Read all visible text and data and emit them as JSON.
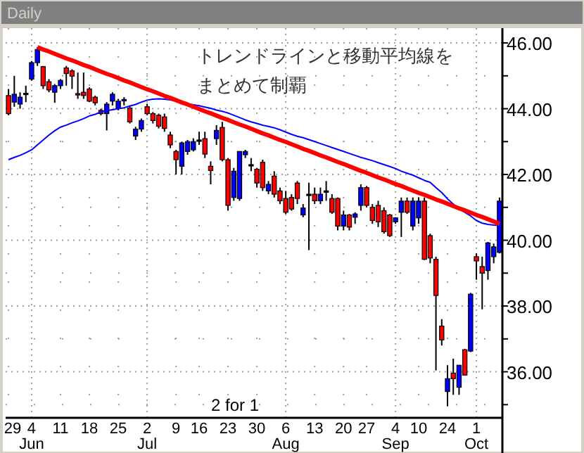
{
  "chart_data": {
    "type": "candlestick",
    "title": "Daily",
    "categories": [
      "29",
      null,
      null,
      null,
      "4\nJun",
      null,
      null,
      null,
      null,
      "11",
      null,
      null,
      null,
      null,
      "18",
      null,
      null,
      null,
      null,
      "25",
      null,
      null,
      null,
      null,
      "2\nJul",
      null,
      null,
      null,
      null,
      "9",
      null,
      null,
      null,
      "16",
      null,
      null,
      null,
      null,
      "23",
      null,
      null,
      null,
      null,
      "30",
      null,
      null,
      null,
      null,
      "6\nAug",
      null,
      null,
      null,
      null,
      "13",
      null,
      null,
      null,
      null,
      "20",
      null,
      null,
      null,
      "27",
      null,
      null,
      null,
      null,
      "4\nSep",
      null,
      null,
      null,
      "10",
      null,
      null,
      null,
      null,
      "24",
      null,
      null,
      null,
      null,
      "1\nOct",
      null,
      null,
      null,
      null
    ],
    "ohlc": [
      [
        44.4,
        44.6,
        43.8,
        43.85
      ],
      [
        44.2,
        45.0,
        44.06,
        44.44
      ],
      [
        44.14,
        44.5,
        44.0,
        44.35
      ],
      [
        44.47,
        44.7,
        44.2,
        44.47
      ],
      [
        44.9,
        45.45,
        44.85,
        45.4
      ],
      [
        45.4,
        45.87,
        45.3,
        45.8
      ],
      [
        45.28,
        45.3,
        44.6,
        44.7
      ],
      [
        44.82,
        44.9,
        44.5,
        44.57
      ],
      [
        44.5,
        44.75,
        44.18,
        44.7
      ],
      [
        44.7,
        44.9,
        44.6,
        44.86
      ],
      [
        45.24,
        45.3,
        44.7,
        45.07
      ],
      [
        45.15,
        45.2,
        44.6,
        44.99
      ],
      [
        44.46,
        45.1,
        44.3,
        44.42
      ],
      [
        44.5,
        45.1,
        44.3,
        44.4
      ],
      [
        44.6,
        44.65,
        44.2,
        44.23
      ],
      [
        44.35,
        44.4,
        44.1,
        44.18
      ],
      [
        43.95,
        44.0,
        43.8,
        43.85
      ],
      [
        43.85,
        44.2,
        43.34,
        44.14
      ],
      [
        44.23,
        44.5,
        44.1,
        44.44
      ],
      [
        44.02,
        44.3,
        43.95,
        44.23
      ],
      [
        44.24,
        44.35,
        44.1,
        44.28
      ],
      [
        44.02,
        44.1,
        43.55,
        43.6
      ],
      [
        43.17,
        43.45,
        43.05,
        43.38
      ],
      [
        43.38,
        43.7,
        43.3,
        43.64
      ],
      [
        44.06,
        44.15,
        43.8,
        43.85
      ],
      [
        43.85,
        43.9,
        43.55,
        43.64
      ],
      [
        43.8,
        43.85,
        43.4,
        43.47
      ],
      [
        43.75,
        43.85,
        43.3,
        43.4
      ],
      [
        43.2,
        43.3,
        42.8,
        42.9
      ],
      [
        42.7,
        42.75,
        42.0,
        42.45
      ],
      [
        42.25,
        43.0,
        42.0,
        42.96
      ],
      [
        42.7,
        43.05,
        42.6,
        43.0
      ],
      [
        42.75,
        43.1,
        42.7,
        43.0
      ],
      [
        43.05,
        43.3,
        42.9,
        43.05
      ],
      [
        43.09,
        43.3,
        42.5,
        42.62
      ],
      [
        42.25,
        42.4,
        41.7,
        42.12
      ],
      [
        43.09,
        43.5,
        42.9,
        43.34
      ],
      [
        43.43,
        43.6,
        42.4,
        42.45
      ],
      [
        42.45,
        42.5,
        40.9,
        41.06
      ],
      [
        41.3,
        42.2,
        41.2,
        42.1
      ],
      [
        41.27,
        42.7,
        41.2,
        42.7
      ],
      [
        42.6,
        42.75,
        42.5,
        42.7
      ],
      [
        42.3,
        42.5,
        42.1,
        42.3
      ],
      [
        42.16,
        42.2,
        41.6,
        41.74
      ],
      [
        42.37,
        42.45,
        41.5,
        41.6
      ],
      [
        41.5,
        41.8,
        41.4,
        41.7
      ],
      [
        41.95,
        42.1,
        41.3,
        41.4
      ],
      [
        41.5,
        41.6,
        41.1,
        41.2
      ],
      [
        41.27,
        41.5,
        40.8,
        40.85
      ],
      [
        41.3,
        41.4,
        40.9,
        40.95
      ],
      [
        41.74,
        41.8,
        41.1,
        41.27
      ],
      [
        40.77,
        41.1,
        40.7,
        40.98
      ],
      [
        41.4,
        41.75,
        39.7,
        41.4
      ],
      [
        41.4,
        41.6,
        41.1,
        41.2
      ],
      [
        41.2,
        41.6,
        41.1,
        41.4
      ],
      [
        41.5,
        41.8,
        41.2,
        41.5
      ],
      [
        41.27,
        41.4,
        40.8,
        40.85
      ],
      [
        41.27,
        41.3,
        40.3,
        40.43
      ],
      [
        40.43,
        40.9,
        40.3,
        40.77
      ],
      [
        40.77,
        40.8,
        40.3,
        40.4
      ],
      [
        40.7,
        40.85,
        40.5,
        40.8
      ],
      [
        41.06,
        41.7,
        40.9,
        41.6
      ],
      [
        41.6,
        41.65,
        41.0,
        41.06
      ],
      [
        41.0,
        41.1,
        40.5,
        40.6
      ],
      [
        41.06,
        41.2,
        40.4,
        40.56
      ],
      [
        40.9,
        41.0,
        40.2,
        40.26
      ],
      [
        40.77,
        40.8,
        40.1,
        40.14
      ],
      [
        40.56,
        40.7,
        40.5,
        40.68
      ],
      [
        40.85,
        41.3,
        40.1,
        41.19
      ],
      [
        41.19,
        41.3,
        40.8,
        40.85
      ],
      [
        40.43,
        41.3,
        40.3,
        41.19
      ],
      [
        40.68,
        41.3,
        40.5,
        41.19
      ],
      [
        41.19,
        41.3,
        39.4,
        39.42
      ],
      [
        40.14,
        40.2,
        39.3,
        39.46
      ],
      [
        39.42,
        39.5,
        36.04,
        38.32
      ],
      [
        37.39,
        37.6,
        36.8,
        36.97
      ],
      [
        35.4,
        36.2,
        34.95,
        35.79
      ],
      [
        35.96,
        36.4,
        35.3,
        35.79
      ],
      [
        35.53,
        36.2,
        35.3,
        36.2
      ],
      [
        36.67,
        36.7,
        35.9,
        35.9
      ],
      [
        36.63,
        38.4,
        36.6,
        38.36
      ],
      [
        39.5,
        39.6,
        38.8,
        39.37
      ],
      [
        39.2,
        39.5,
        37.9,
        39.0
      ],
      [
        39.08,
        39.95,
        38.8,
        39.92
      ],
      [
        39.5,
        39.9,
        39.3,
        39.8
      ],
      [
        39.63,
        41.3,
        39.6,
        41.19
      ]
    ],
    "colors": [
      "#ff0000",
      "#0000ff",
      "#0000ff",
      "#000000",
      "#0000ff",
      "#0000ff",
      "#ff0000",
      "#ff0000",
      "#0000ff",
      "#0000ff",
      "#ff0000",
      "#ff0000",
      "#ff0000",
      "#ff0000",
      "#ff0000",
      "#ff0000",
      "#ff0000",
      "#0000ff",
      "#0000ff",
      "#0000ff",
      "#0000ff",
      "#ff0000",
      "#0000ff",
      "#0000ff",
      "#ff0000",
      "#ff0000",
      "#ff0000",
      "#ff0000",
      "#ff0000",
      "#ff0000",
      "#0000ff",
      "#0000ff",
      "#0000ff",
      "#000000",
      "#ff0000",
      "#ff0000",
      "#0000ff",
      "#ff0000",
      "#ff0000",
      "#0000ff",
      "#0000ff",
      "#0000ff",
      "#000000",
      "#ff0000",
      "#ff0000",
      "#0000ff",
      "#ff0000",
      "#ff0000",
      "#ff0000",
      "#ff0000",
      "#ff0000",
      "#0000ff",
      "#000000",
      "#ff0000",
      "#0000ff",
      "#000000",
      "#ff0000",
      "#ff0000",
      "#0000ff",
      "#ff0000",
      "#0000ff",
      "#0000ff",
      "#ff0000",
      "#ff0000",
      "#ff0000",
      "#ff0000",
      "#ff0000",
      "#0000ff",
      "#0000ff",
      "#ff0000",
      "#0000ff",
      "#0000ff",
      "#ff0000",
      "#ff0000",
      "#ff0000",
      "#ff0000",
      "#0000ff",
      "#ff0000",
      "#0000ff",
      "#ff0000",
      "#0000ff",
      "#ff0000",
      "#ff0000",
      "#0000ff",
      "#0000ff",
      "#0000ff"
    ],
    "series": [
      {
        "type": "line",
        "color": "#0000ff",
        "values": [
          42.45,
          42.52,
          42.58,
          42.66,
          42.75,
          42.9,
          43.05,
          43.2,
          43.33,
          43.44,
          43.5,
          43.57,
          43.63,
          43.7,
          43.78,
          43.83,
          43.9,
          43.94,
          43.97,
          44.0,
          44.03,
          44.08,
          44.13,
          44.2,
          44.26,
          44.29,
          44.3,
          44.29,
          44.27,
          44.23,
          44.2,
          44.15,
          44.12,
          44.09,
          44.05,
          44.01,
          43.96,
          43.92,
          43.87,
          43.8,
          43.73,
          43.66,
          43.6,
          43.55,
          43.5,
          43.46,
          43.42,
          43.36,
          43.29,
          43.22,
          43.16,
          43.12,
          43.06,
          43.0,
          42.94,
          42.88,
          42.82,
          42.76,
          42.7,
          42.64,
          42.58,
          42.52,
          42.47,
          42.42,
          42.36,
          42.3,
          42.24,
          42.18,
          42.1,
          42.04,
          41.98,
          41.9,
          41.82,
          41.76,
          41.6,
          41.45,
          41.26,
          41.1,
          40.95,
          40.85,
          40.74,
          40.6,
          40.52,
          40.48,
          40.46,
          40.45
        ]
      },
      {
        "type": "line",
        "color": "#ff0000",
        "values": [
          null,
          null,
          null,
          null,
          null,
          45.87,
          45.8,
          45.74,
          45.67,
          45.6,
          45.53,
          45.47,
          45.4,
          45.33,
          45.27,
          45.2,
          45.13,
          45.06,
          45.0,
          44.93,
          44.86,
          44.8,
          44.73,
          44.66,
          44.59,
          44.53,
          44.46,
          44.39,
          44.33,
          44.26,
          44.19,
          44.13,
          44.06,
          43.99,
          43.92,
          43.86,
          43.79,
          43.72,
          43.66,
          43.59,
          43.52,
          43.46,
          43.39,
          43.32,
          43.25,
          43.19,
          43.12,
          43.05,
          42.99,
          42.92,
          42.85,
          42.78,
          42.72,
          42.65,
          42.58,
          42.52,
          42.45,
          42.38,
          42.32,
          42.25,
          42.18,
          42.11,
          42.05,
          41.98,
          41.91,
          41.85,
          41.78,
          41.71,
          41.65,
          41.58,
          41.51,
          41.44,
          41.38,
          41.31,
          41.24,
          41.18,
          41.11,
          41.04,
          40.97,
          40.91,
          40.84,
          40.77,
          40.71,
          40.64,
          40.57,
          40.5
        ]
      }
    ],
    "ylim": [
      34.6,
      46.45
    ],
    "yticks": [
      {
        "value": 36,
        "label": "36.00"
      },
      {
        "value": 38,
        "label": "38.00"
      },
      {
        "value": 40,
        "label": "40.00"
      },
      {
        "value": 42,
        "label": "42.00"
      },
      {
        "value": 44,
        "label": "44.00"
      },
      {
        "value": 46,
        "label": "46.00"
      },
      {
        "value": 35,
        "label": null
      },
      {
        "value": 37,
        "label": null
      },
      {
        "value": 39,
        "label": null
      },
      {
        "value": 41,
        "label": null
      },
      {
        "value": 43,
        "label": null
      },
      {
        "value": 45,
        "label": null
      }
    ],
    "grid": true,
    "annotations": [
      "トレンドラインと移動平均線を",
      "まとめて制覇",
      "2 for 1"
    ]
  }
}
